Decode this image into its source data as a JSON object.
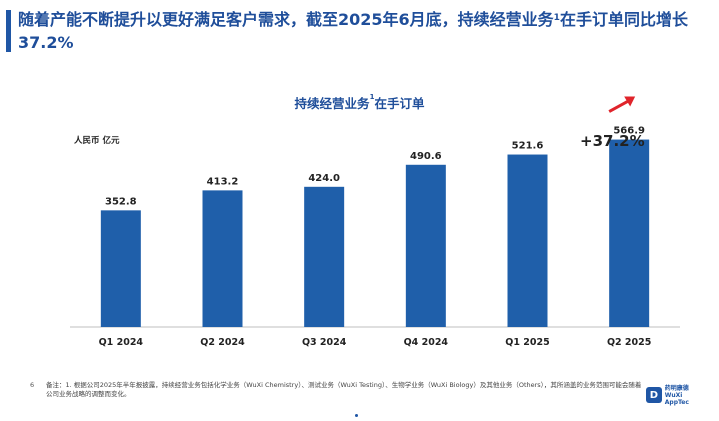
{
  "slide": {
    "headline_main": "随着产能不断提升以更好满足客户需求，截至2025年6月底，持续经营业务",
    "headline_sup": "1",
    "headline_rest": "在手订单同比增长37.2%",
    "page_number": "6",
    "footnote": "备注：1. 根据公司2025年半年报披露，持续经营业务包括化学业务（WuXi Chemistry）、测试业务（WuXi Testing）、生物学业务（WuXi Biology）及其他业务（Others），其所涵盖的业务范围可能会随着公司业务战略的调整而变化。",
    "logo_mark": "D",
    "logo_text_line1": "药明康德",
    "logo_text_line2": "WuXi AppTec"
  },
  "chart_data": {
    "type": "bar",
    "title_main": "持续经营业务",
    "title_sup": "1",
    "title_rest": "在手订单",
    "unit_label": "人民币 亿元",
    "categories": [
      "Q1 2024",
      "Q2 2024",
      "Q3 2024",
      "Q4 2024",
      "Q1 2025",
      "Q2 2025"
    ],
    "values": [
      352.8,
      413.2,
      424.0,
      490.6,
      521.6,
      566.9
    ],
    "value_labels": [
      "352.8",
      "413.2",
      "424.0",
      "490.6",
      "521.6",
      "566.9"
    ],
    "ylim": [
      0,
      620
    ],
    "grid": false,
    "bar_color": "#1f5faa",
    "growth_annotation": "+37.2%",
    "arrow_color": "#e0242b"
  }
}
